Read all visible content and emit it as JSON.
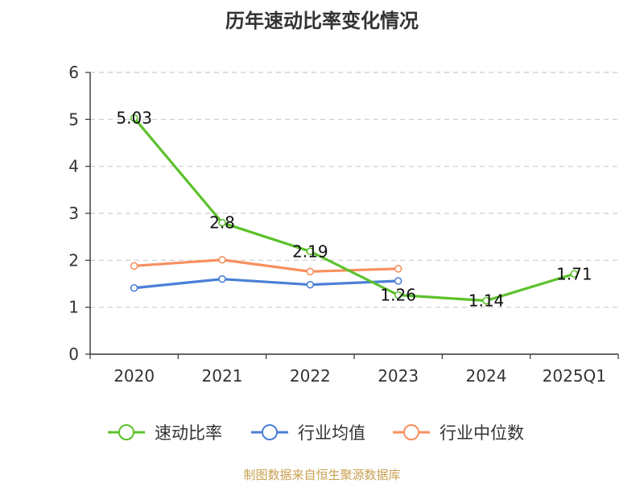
{
  "chart_data": {
    "type": "line",
    "title": "历年速动比率变化情况",
    "categories": [
      "2020",
      "2021",
      "2022",
      "2023",
      "2024",
      "2025Q1"
    ],
    "ylim": [
      0,
      6
    ],
    "yticks": [
      "0",
      "1",
      "2",
      "3",
      "4",
      "5",
      "6"
    ],
    "grid": "horizontal dashed",
    "legend_position": "bottom",
    "series": [
      {
        "name": "速动比率",
        "color": "#5cc12b",
        "values": [
          5.03,
          2.8,
          2.19,
          1.26,
          1.14,
          1.71
        ],
        "labels": [
          "5.03",
          "2.8",
          "2.19",
          "1.26",
          "1.14",
          "1.71"
        ]
      },
      {
        "name": "行业均值",
        "color": "#4a7fd6",
        "values": [
          1.41,
          1.6,
          1.48,
          1.56,
          null,
          null
        ]
      },
      {
        "name": "行业中位数",
        "color": "#f7905f",
        "values": [
          1.88,
          2.01,
          1.76,
          1.82,
          null,
          null
        ]
      }
    ]
  },
  "footer": {
    "source": "制图数据来自恒生聚源数据库"
  }
}
